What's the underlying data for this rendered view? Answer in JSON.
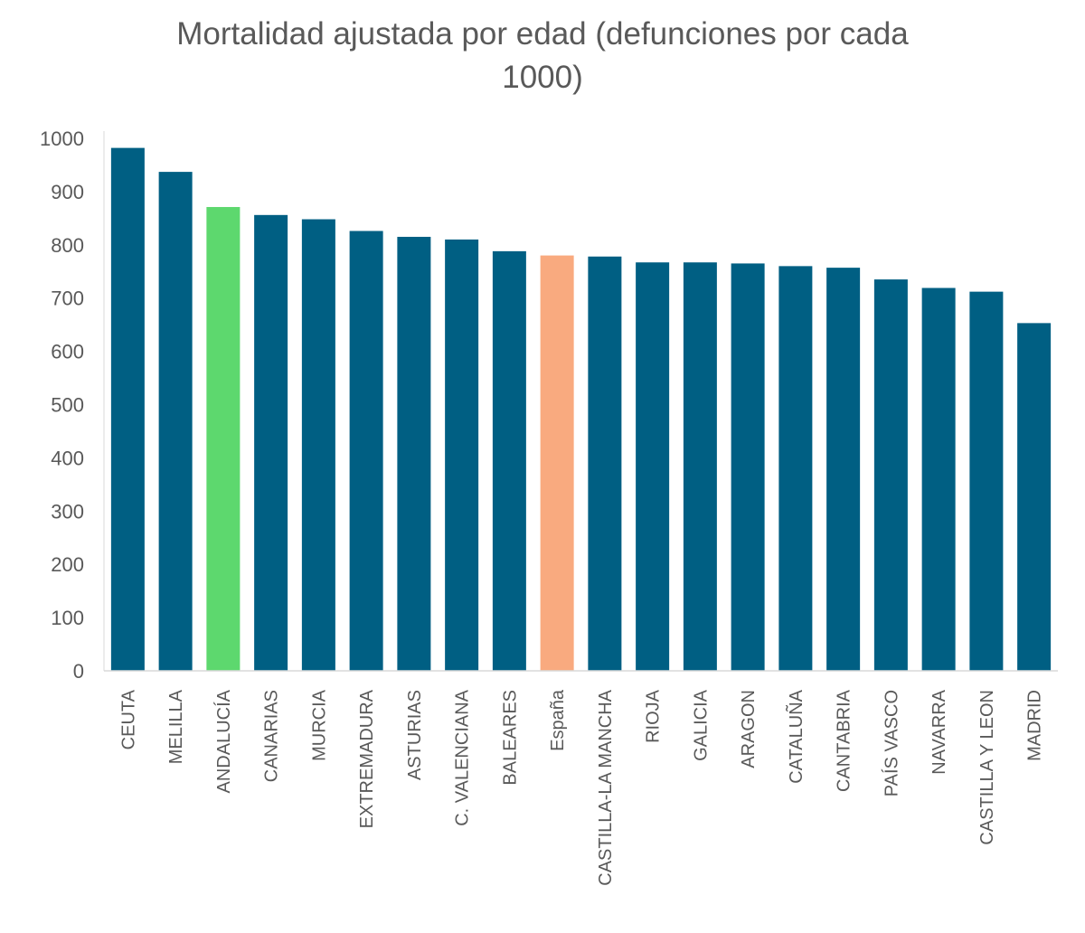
{
  "chart_data": {
    "type": "bar",
    "title_lines": [
      "Mortalidad ajustada por edad (defunciones por cada",
      "1000)"
    ],
    "xlabel": "",
    "ylabel": "",
    "ylim": [
      0,
      1000
    ],
    "yticks": [
      0,
      100,
      200,
      300,
      400,
      500,
      600,
      700,
      800,
      900,
      1000
    ],
    "grid": false,
    "categories": [
      "CEUTA",
      "MELILLA",
      "ANDALUCÍA",
      "CANARIAS",
      "MURCIA",
      "EXTREMADURA",
      "ASTURIAS",
      "C. VALENCIANA",
      "BALEARES",
      "España",
      "CASTILLA-LA MANCHA",
      "RIOJA",
      "GALICIA",
      "ARAGON",
      "CATALUÑA",
      "CANTABRIA",
      "PAÍS VASCO",
      "NAVARRA",
      "CASTILLA Y LEON",
      "MADRID"
    ],
    "values": [
      982,
      937,
      871,
      856,
      848,
      826,
      815,
      810,
      788,
      780,
      778,
      767,
      767,
      765,
      760,
      757,
      735,
      719,
      712,
      653
    ],
    "colors": {
      "default": "#005F83",
      "ANDALUCÍA": "#5DD86E",
      "España": "#F9AA7F"
    }
  }
}
